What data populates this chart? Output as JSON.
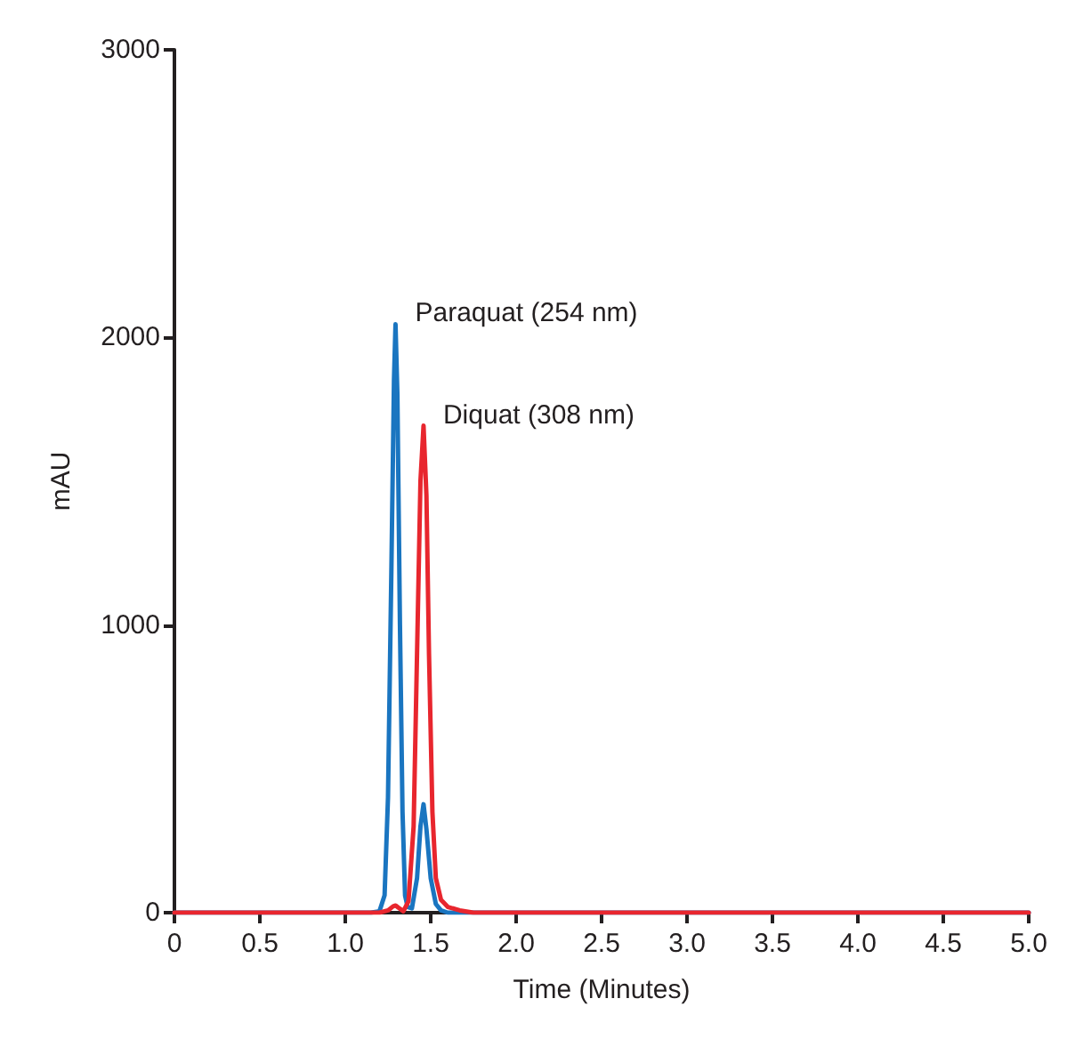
{
  "chart_data": {
    "type": "line",
    "xlabel": "Time (Minutes)",
    "ylabel": "mAU",
    "xlim": [
      0,
      5
    ],
    "xticks": [
      0,
      0.5,
      {
        "value": 1,
        "label": "1.0"
      },
      1.5,
      {
        "value": 2,
        "label": "2.0"
      },
      2.5,
      {
        "value": 3,
        "label": "3.0"
      },
      3.5,
      {
        "value": 4,
        "label": "4.0"
      },
      4.5,
      {
        "value": 5,
        "label": "5.0"
      }
    ],
    "ylim": [
      0,
      3000
    ],
    "yticks": [
      0,
      1000,
      2000,
      3000
    ],
    "grid": false,
    "legend": false,
    "marker": "none",
    "line_style": "solid",
    "series": [
      {
        "name": "Paraquat (254 nm)",
        "color": "#1a75c0",
        "x": [
          0,
          1.15,
          1.2,
          1.23,
          1.25,
          1.27,
          1.285,
          1.294,
          1.305,
          1.32,
          1.335,
          1.35,
          1.365,
          1.39,
          1.42,
          1.44,
          1.458,
          1.475,
          1.5,
          1.53,
          1.56,
          1.6,
          5
        ],
        "values": [
          0,
          0,
          5,
          60,
          400,
          1200,
          1850,
          2046,
          1800,
          1000,
          350,
          60,
          20,
          15,
          120,
          300,
          377,
          290,
          120,
          30,
          8,
          0,
          0
        ]
      },
      {
        "name": "Diquat (308 nm)",
        "color": "#e8262e",
        "x": [
          0,
          1.2,
          1.25,
          1.28,
          1.295,
          1.31,
          1.34,
          1.37,
          1.4,
          1.42,
          1.44,
          1.458,
          1.475,
          1.49,
          1.51,
          1.53,
          1.56,
          1.6,
          1.67,
          1.75,
          5
        ],
        "values": [
          0,
          0,
          8,
          22,
          25,
          18,
          5,
          40,
          300,
          900,
          1500,
          1693,
          1450,
          900,
          350,
          120,
          45,
          20,
          8,
          0,
          0
        ]
      }
    ]
  }
}
